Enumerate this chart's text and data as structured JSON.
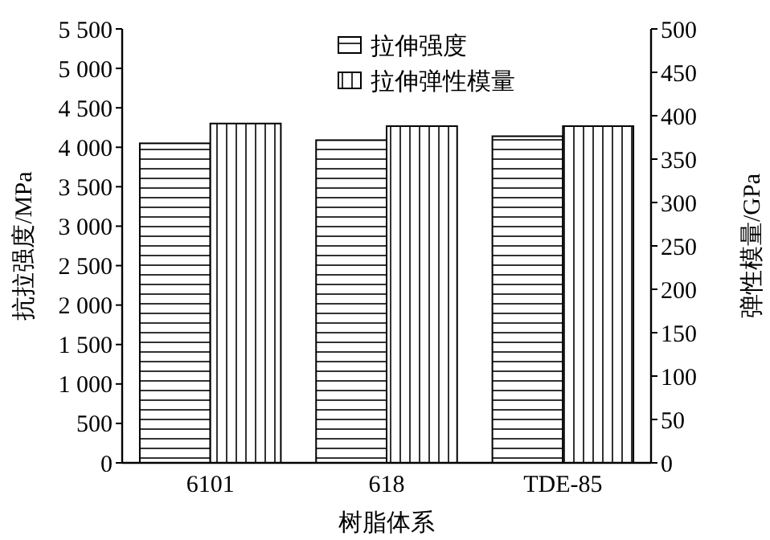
{
  "chart_data": {
    "type": "bar",
    "xlabel": "树脂体系",
    "ylabel": "抗拉强度/MPa",
    "y2label": "弹性模量/GPa",
    "categories": [
      "6101",
      "618",
      "TDE-85"
    ],
    "series": [
      {
        "name": "拉伸强度",
        "color": "#000000",
        "values": [
          4050,
          4090,
          4140
        ]
      },
      {
        "name": "拉伸弹性模量",
        "color": "#000000",
        "values": [
          391,
          388,
          388
        ],
        "axis": "y2"
      }
    ],
    "ylim": [
      0,
      5500
    ],
    "yticks": [
      {
        "value": 0,
        "label": "0"
      },
      {
        "value": 500,
        "label": "500"
      },
      {
        "value": 1000,
        "label": "1 000"
      },
      {
        "value": 1500,
        "label": "1 500"
      },
      {
        "value": 2000,
        "label": "2 000"
      },
      {
        "value": 2500,
        "label": "2 500"
      },
      {
        "value": 3000,
        "label": "3 000"
      },
      {
        "value": 3500,
        "label": "3 500"
      },
      {
        "value": 4000,
        "label": "4 000"
      },
      {
        "value": 4500,
        "label": "4 500"
      },
      {
        "value": 5000,
        "label": "5 000"
      },
      {
        "value": 5500,
        "label": "5 500"
      }
    ],
    "y2lim": [
      0,
      500
    ],
    "y2ticks": [
      0,
      50,
      100,
      150,
      200,
      250,
      300,
      350,
      400,
      450,
      500
    ],
    "legend": "top",
    "grid": false
  }
}
